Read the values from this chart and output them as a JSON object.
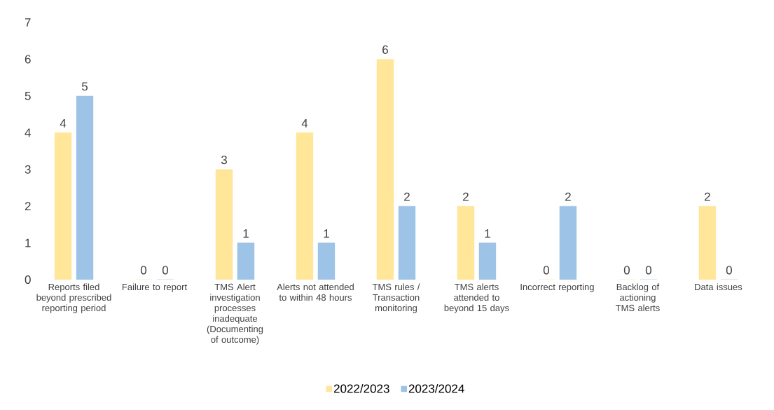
{
  "chart_data": {
    "type": "bar",
    "categories": [
      "Reports filed beyond prescribed reporting period",
      "Failure to report",
      "TMS Alert investigation processes inadequate (Documenting of outcome)",
      "Alerts not attended to within  48 hours",
      "TMS rules / Transaction monitoring",
      "TMS alerts attended to beyond 15 days",
      "Incorrect reporting",
      "Backlog of actioning TMS alerts",
      "Data issues"
    ],
    "series": [
      {
        "name": "2022/2023",
        "color": "#ffe699",
        "values": [
          4,
          0,
          3,
          4,
          6,
          2,
          0,
          0,
          2
        ]
      },
      {
        "name": "2023/2024",
        "color": "#9dc3e6",
        "values": [
          5,
          0,
          1,
          1,
          2,
          1,
          2,
          0,
          0
        ]
      }
    ],
    "ylim": [
      0,
      7
    ],
    "yticks": [
      0,
      1,
      2,
      3,
      4,
      5,
      6,
      7
    ],
    "data_labels": true,
    "legend": "bottom",
    "grid": false
  }
}
